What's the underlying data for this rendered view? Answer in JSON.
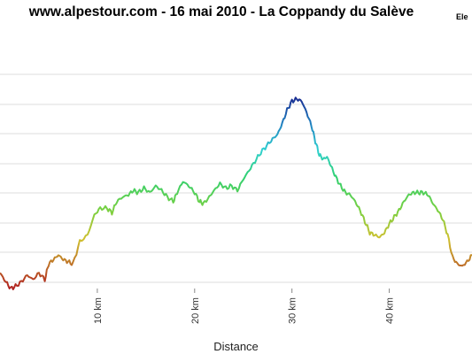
{
  "chart_data": {
    "type": "line",
    "title": "www.alpestour.com - 16 mai 2010 - La Coppandy du Salève",
    "ylabel_visible": "Ele",
    "xlabel": "Distance",
    "x_unit": "km",
    "xlim": [
      0,
      48.5
    ],
    "x_ticks": [
      10,
      20,
      30,
      40
    ],
    "x_tick_labels": [
      "10 km",
      "20 km",
      "30 km",
      "40 km"
    ],
    "y_axis_labels_visible": false,
    "grid": "horizontal",
    "line_colors": "gradient by elevation: red/brown (low) → orange/yellow → green → cyan → blue → purple (high)",
    "series": [
      {
        "values_relative_elevation_0_to_1": [
          [
            0.0,
            0.07
          ],
          [
            0.6,
            0.03
          ],
          [
            1.1,
            0.0
          ],
          [
            1.6,
            0.01
          ],
          [
            2.2,
            0.03
          ],
          [
            2.8,
            0.06
          ],
          [
            3.4,
            0.04
          ],
          [
            4.0,
            0.07
          ],
          [
            4.6,
            0.04
          ],
          [
            5.0,
            0.11
          ],
          [
            5.5,
            0.13
          ],
          [
            6.0,
            0.15
          ],
          [
            6.5,
            0.13
          ],
          [
            7.0,
            0.12
          ],
          [
            7.5,
            0.11
          ],
          [
            8.2,
            0.21
          ],
          [
            9.0,
            0.24
          ],
          [
            9.7,
            0.33
          ],
          [
            10.3,
            0.36
          ],
          [
            11.0,
            0.36
          ],
          [
            11.5,
            0.34
          ],
          [
            12.0,
            0.39
          ],
          [
            12.6,
            0.41
          ],
          [
            13.2,
            0.42
          ],
          [
            13.7,
            0.44
          ],
          [
            14.2,
            0.43
          ],
          [
            14.8,
            0.45
          ],
          [
            15.4,
            0.43
          ],
          [
            16.0,
            0.46
          ],
          [
            16.6,
            0.44
          ],
          [
            17.2,
            0.41
          ],
          [
            17.8,
            0.39
          ],
          [
            18.2,
            0.43
          ],
          [
            18.8,
            0.48
          ],
          [
            19.4,
            0.46
          ],
          [
            20.0,
            0.43
          ],
          [
            20.5,
            0.39
          ],
          [
            20.9,
            0.38
          ],
          [
            21.5,
            0.41
          ],
          [
            22.0,
            0.44
          ],
          [
            22.6,
            0.47
          ],
          [
            23.2,
            0.45
          ],
          [
            23.8,
            0.46
          ],
          [
            24.4,
            0.44
          ],
          [
            25.0,
            0.49
          ],
          [
            25.6,
            0.53
          ],
          [
            26.2,
            0.57
          ],
          [
            26.8,
            0.61
          ],
          [
            27.4,
            0.64
          ],
          [
            28.0,
            0.67
          ],
          [
            28.5,
            0.69
          ],
          [
            29.0,
            0.74
          ],
          [
            29.5,
            0.8
          ],
          [
            30.0,
            0.84
          ],
          [
            30.5,
            0.85
          ],
          [
            31.0,
            0.84
          ],
          [
            31.5,
            0.79
          ],
          [
            32.0,
            0.73
          ],
          [
            32.4,
            0.66
          ],
          [
            32.8,
            0.6
          ],
          [
            33.2,
            0.58
          ],
          [
            33.6,
            0.59
          ],
          [
            34.0,
            0.55
          ],
          [
            34.5,
            0.5
          ],
          [
            35.0,
            0.46
          ],
          [
            35.5,
            0.43
          ],
          [
            36.0,
            0.42
          ],
          [
            36.5,
            0.39
          ],
          [
            37.0,
            0.35
          ],
          [
            37.5,
            0.3
          ],
          [
            38.0,
            0.25
          ],
          [
            38.5,
            0.24
          ],
          [
            39.0,
            0.23
          ],
          [
            39.5,
            0.25
          ],
          [
            40.0,
            0.29
          ],
          [
            40.5,
            0.32
          ],
          [
            41.0,
            0.35
          ],
          [
            41.5,
            0.39
          ],
          [
            42.0,
            0.42
          ],
          [
            42.5,
            0.43
          ],
          [
            43.0,
            0.43
          ],
          [
            43.5,
            0.43
          ],
          [
            44.0,
            0.42
          ],
          [
            44.5,
            0.38
          ],
          [
            45.0,
            0.35
          ],
          [
            45.5,
            0.31
          ],
          [
            46.0,
            0.24
          ],
          [
            46.5,
            0.14
          ],
          [
            47.0,
            0.11
          ],
          [
            47.5,
            0.1
          ],
          [
            48.0,
            0.12
          ],
          [
            48.5,
            0.15
          ]
        ]
      }
    ]
  }
}
